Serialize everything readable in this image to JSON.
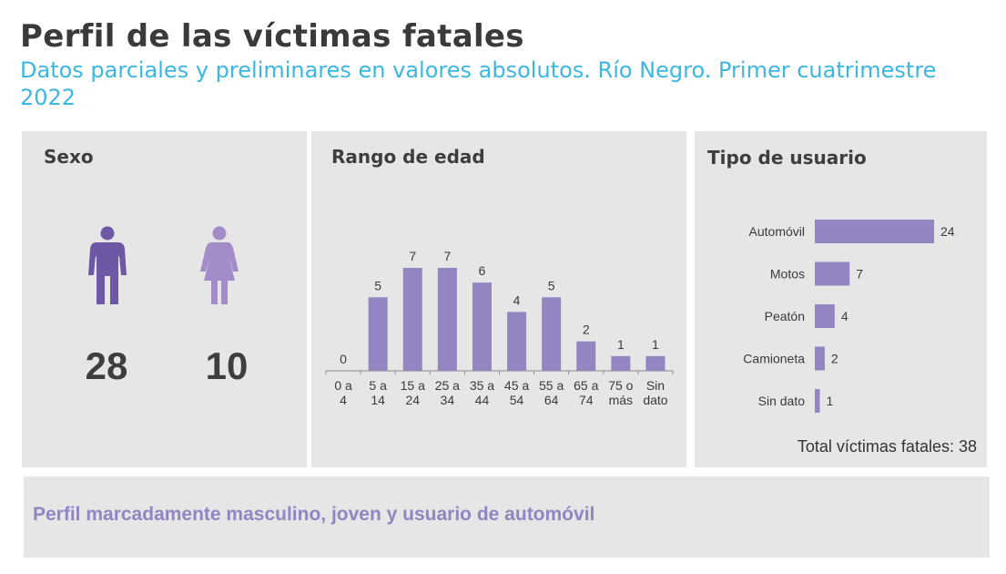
{
  "header": {
    "title": "Perfil de las víctimas fatales",
    "subtitle": "Datos parciales y preliminares en valores absolutos. Río Negro. Primer cuatrimestre 2022"
  },
  "sexo": {
    "title": "Sexo",
    "male_count": "28",
    "female_count": "10",
    "male_color": "#6e57a5",
    "female_color": "#a38dc9"
  },
  "colors": {
    "bar": "#9384c2",
    "panel": "#e6e6e6",
    "text": "#3e3e3e"
  },
  "chart_data": [
    {
      "type": "bar",
      "title": "Rango de edad",
      "categories": [
        "0 a 4",
        "5 a 14",
        "15 a 24",
        "25 a 34",
        "35 a 44",
        "45 a 54",
        "55 a 64",
        "65 a 74",
        "75 o más",
        "Sin dato"
      ],
      "values": [
        0,
        5,
        7,
        7,
        6,
        4,
        5,
        2,
        1,
        1
      ],
      "ylim": [
        0,
        7
      ],
      "grid": false
    },
    {
      "type": "bar",
      "orientation": "horizontal",
      "title": "Tipo de usuario",
      "categories": [
        "Automóvil",
        "Motos",
        "Peatón",
        "Camioneta",
        "Sin dato"
      ],
      "values": [
        24,
        7,
        4,
        2,
        1
      ],
      "xlim": [
        0,
        24
      ],
      "grid": false
    }
  ],
  "tipo": {
    "total_label": "Total víctimas fatales: 38"
  },
  "footer": {
    "text": "Perfil marcadamente masculino, joven y usuario de automóvil"
  }
}
